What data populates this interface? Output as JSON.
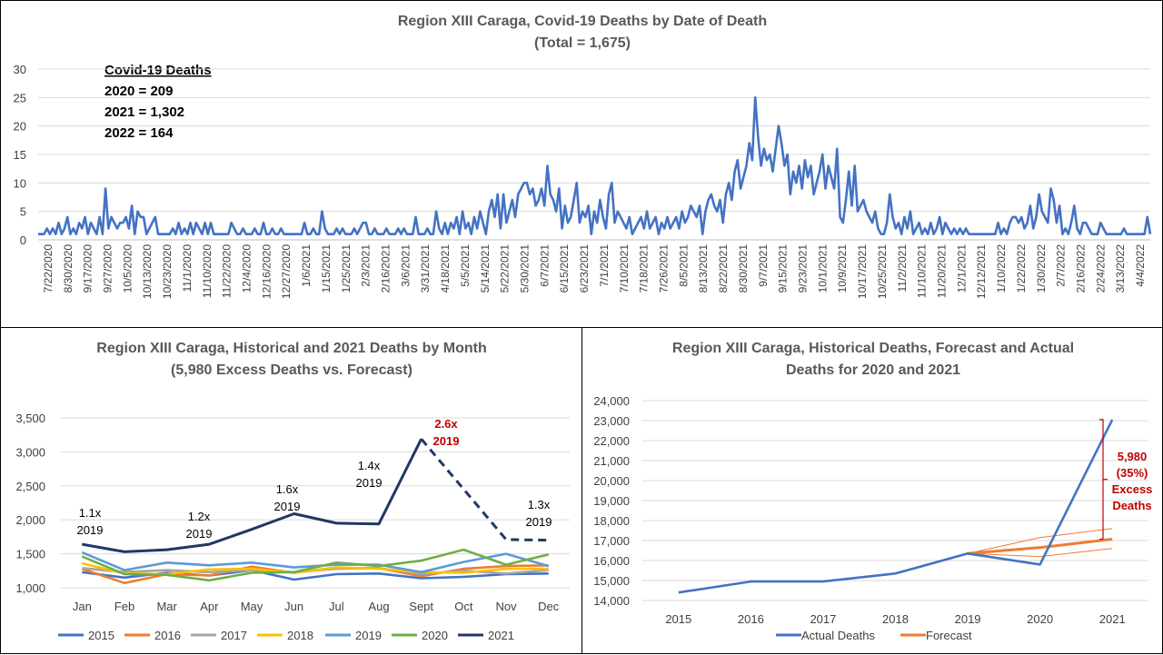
{
  "charts": {
    "daily": {
      "title_line1": "Region XIII Caraga, Covid-19 Deaths by Date of Death",
      "title_line2": "(Total = 1,675)",
      "summary_title": "Covid-19 Deaths",
      "summary_lines": [
        "2020 = 209",
        "2021 = 1,302",
        "2022 = 164"
      ],
      "y_ticks": [
        "0",
        "5",
        "10",
        "15",
        "20",
        "25",
        "30"
      ],
      "x_labels": [
        "7/22/2020",
        "8/30/2020",
        "9/17/2020",
        "9/27/2020",
        "10/5/2020",
        "10/13/2020",
        "10/23/2020",
        "11/1/2020",
        "11/10/2020",
        "11/22/2020",
        "12/4/2020",
        "12/16/2020",
        "12/27/2020",
        "1/6/2021",
        "1/15/2021",
        "1/25/2021",
        "2/3/2021",
        "2/16/2021",
        "3/6/2021",
        "3/31/2021",
        "4/18/2021",
        "5/5/2021",
        "5/14/2021",
        "5/22/2021",
        "5/30/2021",
        "6/7/2021",
        "6/15/2021",
        "6/23/2021",
        "7/1/2021",
        "7/10/2021",
        "7/18/2021",
        "7/26/2021",
        "8/5/2021",
        "8/13/2021",
        "8/22/2021",
        "8/30/2021",
        "9/7/2021",
        "9/15/2021",
        "9/23/2021",
        "10/1/2021",
        "10/9/2021",
        "10/17/2021",
        "10/25/2021",
        "11/2/2021",
        "11/10/2021",
        "11/20/2021",
        "12/1/2021",
        "12/12/2021",
        "1/10/2022",
        "1/22/2022",
        "1/30/2022",
        "2/7/2022",
        "2/16/2022",
        "2/24/2022",
        "3/13/2022",
        "4/4/2022"
      ],
      "color": "#4472c4"
    },
    "monthly": {
      "title_line1": "Region XIII Caraga, Historical and 2021 Deaths by Month",
      "title_line2": "(5,980 Excess Deaths vs. Forecast)",
      "y_ticks": [
        "1,000",
        "1,500",
        "2,000",
        "2,500",
        "3,000",
        "3,500"
      ],
      "annotations": [
        {
          "l1": "1.1x",
          "l2": "2019",
          "red": false
        },
        {
          "l1": "1.2x",
          "l2": "2019",
          "red": false
        },
        {
          "l1": "1.6x",
          "l2": "2019",
          "red": false
        },
        {
          "l1": "1.4x",
          "l2": "2019",
          "red": false
        },
        {
          "l1": "2.6x",
          "l2": "2019",
          "red": true
        },
        {
          "l1": "1.3x",
          "l2": "2019",
          "red": false
        }
      ]
    },
    "forecast": {
      "title_line1": "Region XIII Caraga, Historical Deaths, Forecast and Actual",
      "title_line2": "Deaths for 2020 and 2021",
      "y_ticks": [
        "14,000",
        "15,000",
        "16,000",
        "17,000",
        "18,000",
        "19,000",
        "20,000",
        "21,000",
        "22,000",
        "23,000",
        "24,000"
      ],
      "excess_lines": [
        "5,980",
        "(35%)",
        "Excess",
        "Deaths"
      ]
    }
  },
  "chart_data": [
    {
      "type": "line",
      "title": "Region XIII Caraga, Covid-19 Deaths by Date of Death (Total = 1,675)",
      "xlabel": "",
      "ylabel": "",
      "ylim": [
        0,
        30
      ],
      "x_start": "7/22/2020",
      "x_end": "4/13/2022",
      "series": [
        {
          "name": "",
          "values": [
            1,
            1,
            1,
            2,
            1,
            2,
            1,
            3,
            1,
            2,
            4,
            1,
            2,
            1,
            3,
            2,
            4,
            1,
            3,
            2,
            1,
            4,
            1,
            9,
            2,
            4,
            3,
            2,
            3,
            3,
            4,
            2,
            6,
            1,
            5,
            4,
            4,
            1,
            2,
            3,
            4,
            1,
            1,
            1,
            1,
            1,
            2,
            1,
            3,
            1,
            2,
            1,
            3,
            1,
            3,
            2,
            1,
            3,
            1,
            3,
            1,
            1,
            1,
            1,
            1,
            1,
            3,
            2,
            1,
            1,
            2,
            1,
            1,
            1,
            2,
            1,
            1,
            3,
            1,
            1,
            2,
            1,
            1,
            2,
            1,
            1,
            1,
            1,
            1,
            1,
            1,
            3,
            1,
            1,
            2,
            1,
            1,
            5,
            2,
            1,
            1,
            1,
            2,
            1,
            2,
            1,
            1,
            1,
            2,
            1,
            2,
            3,
            3,
            1,
            1,
            2,
            1,
            1,
            1,
            2,
            1,
            1,
            1,
            2,
            1,
            2,
            1,
            1,
            1,
            4,
            1,
            1,
            1,
            2,
            1,
            1,
            5,
            2,
            1,
            3,
            1,
            3,
            2,
            4,
            1,
            5,
            2,
            3,
            1,
            4,
            2,
            5,
            3,
            1,
            5,
            7,
            4,
            8,
            2,
            8,
            3,
            5,
            7,
            4,
            8,
            9,
            10,
            10,
            8,
            9,
            6,
            7,
            9,
            6,
            13,
            8,
            7,
            5,
            9,
            2,
            6,
            3,
            4,
            7,
            10,
            3,
            5,
            4,
            6,
            1,
            5,
            3,
            7,
            4,
            2,
            8,
            10,
            3,
            5,
            4,
            3,
            2,
            4,
            1,
            2,
            3,
            4,
            2,
            5,
            2,
            3,
            4,
            1,
            3,
            2,
            4,
            2,
            3,
            4,
            2,
            5,
            3,
            4,
            6,
            5,
            4,
            6,
            1,
            5,
            7,
            8,
            6,
            5,
            7,
            3,
            8,
            10,
            7,
            12,
            14,
            9,
            11,
            13,
            17,
            14,
            25,
            18,
            13,
            16,
            14,
            15,
            12,
            16,
            20,
            17,
            13,
            15,
            8,
            12,
            10,
            13,
            9,
            14,
            11,
            13,
            8,
            10,
            12,
            15,
            9,
            13,
            11,
            9,
            16,
            4,
            3,
            7,
            12,
            6,
            13,
            5,
            6,
            7,
            5,
            4,
            3,
            5,
            2,
            1,
            1,
            3,
            8,
            4,
            2,
            3,
            1,
            4,
            2,
            5,
            1,
            2,
            3,
            1,
            2,
            1,
            3,
            1,
            2,
            4,
            1,
            3,
            2,
            1,
            2,
            1,
            2,
            1,
            2,
            1,
            1,
            1,
            1,
            1,
            1,
            1,
            1,
            1,
            1,
            3,
            1,
            2,
            1,
            3,
            4,
            4,
            3,
            4,
            2,
            3,
            6,
            2,
            4,
            8,
            5,
            4,
            3,
            9,
            7,
            3,
            6,
            1,
            2,
            1,
            3,
            6,
            2,
            1,
            3,
            3,
            2,
            1,
            1,
            1,
            3,
            2,
            1,
            1,
            1,
            1,
            1,
            1,
            2,
            1,
            1,
            1,
            1,
            1,
            1,
            1,
            4,
            1
          ]
        }
      ]
    },
    {
      "type": "line",
      "title": "Region XIII Caraga, Historical and 2021 Deaths by Month (5,980 Excess Deaths vs. Forecast)",
      "xlabel": "",
      "ylabel": "",
      "ylim": [
        1000,
        3500
      ],
      "categories": [
        "Jan",
        "Feb",
        "Mar",
        "Apr",
        "May",
        "Jun",
        "Jul",
        "Aug",
        "Sept",
        "Oct",
        "Nov",
        "Dec"
      ],
      "legend": "bottom",
      "series": [
        {
          "name": "2015",
          "color": "#4472c4",
          "values": [
            1230,
            1150,
            1220,
            1180,
            1260,
            1120,
            1200,
            1210,
            1140,
            1160,
            1200,
            1210
          ]
        },
        {
          "name": "2016",
          "color": "#ed7d31",
          "values": [
            1280,
            1070,
            1200,
            1180,
            1310,
            1220,
            1290,
            1290,
            1170,
            1280,
            1320,
            1330
          ]
        },
        {
          "name": "2017",
          "color": "#a5a5a5",
          "values": [
            1290,
            1230,
            1260,
            1230,
            1260,
            1230,
            1280,
            1290,
            1200,
            1250,
            1210,
            1260
          ]
        },
        {
          "name": "2018",
          "color": "#ffc000",
          "values": [
            1360,
            1210,
            1200,
            1270,
            1280,
            1220,
            1300,
            1280,
            1230,
            1220,
            1280,
            1280
          ]
        },
        {
          "name": "2019",
          "color": "#5b9bd5",
          "values": [
            1520,
            1260,
            1370,
            1330,
            1370,
            1300,
            1340,
            1340,
            1230,
            1380,
            1500,
            1320
          ]
        },
        {
          "name": "2020",
          "color": "#70ad47",
          "values": [
            1460,
            1200,
            1190,
            1110,
            1220,
            1230,
            1370,
            1320,
            1400,
            1560,
            1340,
            1490
          ]
        },
        {
          "name": "2021",
          "color": "#203864",
          "values": [
            1640,
            1530,
            1560,
            1640,
            1860,
            2090,
            1950,
            1940,
            3190,
            2450,
            1710,
            1700
          ],
          "dashed_from_index": 8
        }
      ]
    },
    {
      "type": "line",
      "title": "Region XIII Caraga, Historical Deaths, Forecast and Actual Deaths for 2020 and 2021",
      "xlabel": "",
      "ylabel": "",
      "ylim": [
        14000,
        24000
      ],
      "categories": [
        "2015",
        "2016",
        "2017",
        "2018",
        "2019",
        "2020",
        "2021"
      ],
      "legend": "bottom",
      "series": [
        {
          "name": "Actual Deaths",
          "color": "#4472c4",
          "values": [
            14400,
            14950,
            14950,
            15350,
            16350,
            15800,
            23050
          ]
        },
        {
          "name": "Forecast",
          "color": "#ed7d31",
          "values": [
            null,
            null,
            null,
            null,
            16350,
            16650,
            17070
          ]
        },
        {
          "name": "",
          "color": "#ed7d31",
          "values": [
            null,
            null,
            null,
            null,
            16350,
            17150,
            17600
          ]
        },
        {
          "name": "",
          "color": "#ed7d31",
          "values": [
            null,
            null,
            null,
            null,
            16350,
            16200,
            16600
          ]
        }
      ]
    }
  ]
}
